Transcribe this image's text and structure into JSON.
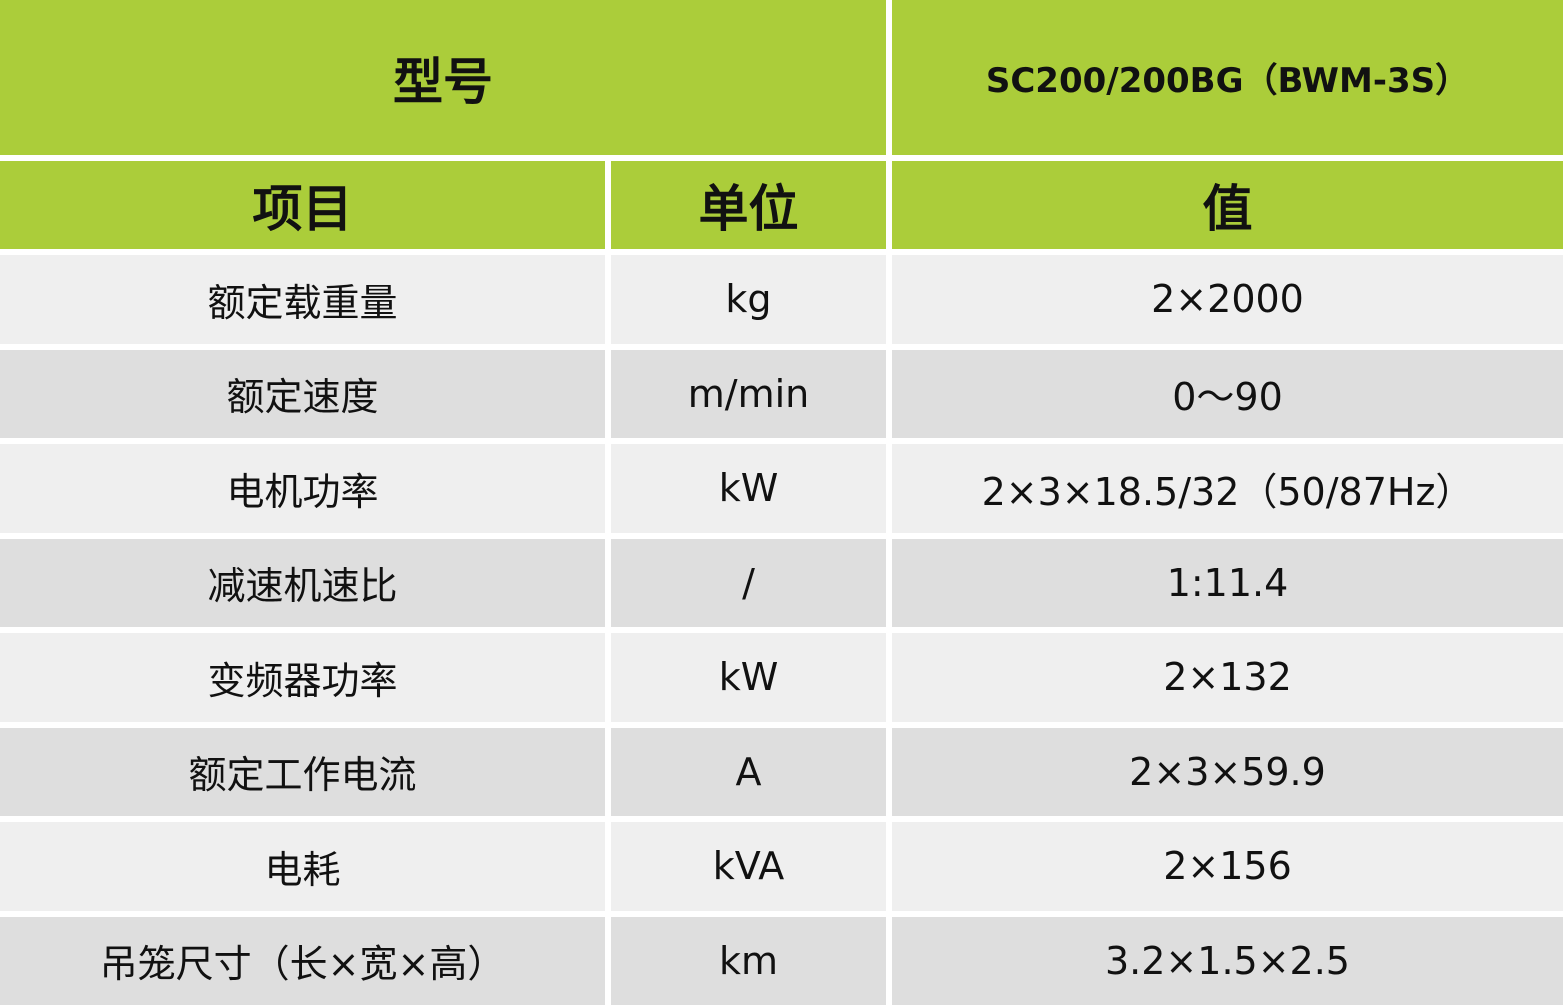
{
  "header": {
    "model_label": "型号",
    "model_value": "SC200/200BG（BWM-3S）"
  },
  "columns": {
    "item": "项目",
    "unit": "单位",
    "value": "值"
  },
  "rows": [
    {
      "item": "额定载重量",
      "unit": "kg",
      "value": "2×2000"
    },
    {
      "item": "额定速度",
      "unit": "m/min",
      "value": "0～90"
    },
    {
      "item": "电机功率",
      "unit": "kW",
      "value": "2×3×18.5/32（50/87Hz）"
    },
    {
      "item": "减速机速比",
      "unit": "/",
      "value": "1:11.4"
    },
    {
      "item": "变频器功率",
      "unit": "kW",
      "value": "2×132"
    },
    {
      "item": "额定工作电流",
      "unit": "A",
      "value": "2×3×59.9"
    },
    {
      "item": "电耗",
      "unit": "kVA",
      "value": "2×156"
    },
    {
      "item": "吊笼尺寸（长×宽×高）",
      "unit": "km",
      "value": "3.2×1.5×2.5"
    }
  ],
  "colors": {
    "header_green": "#abcd3a",
    "row_light": "#efefef",
    "row_dark": "#dedede"
  }
}
